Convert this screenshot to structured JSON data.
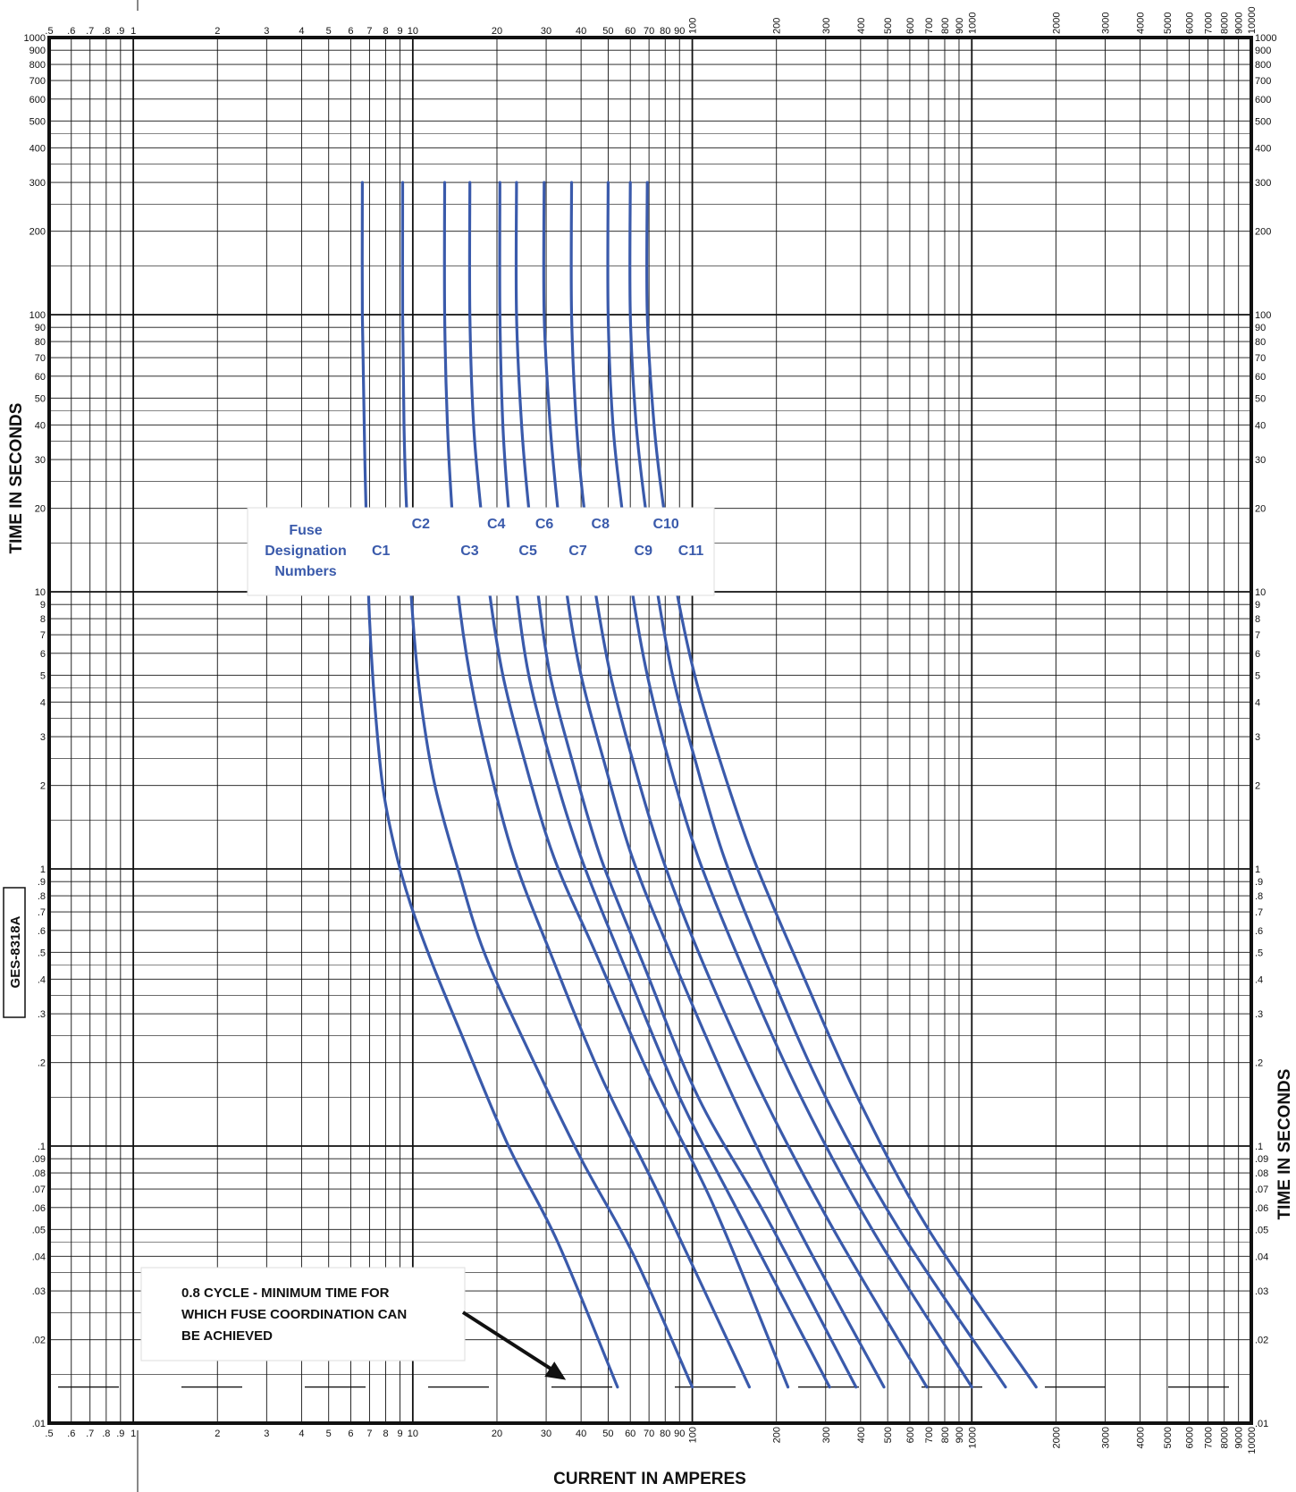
{
  "chart_data": {
    "type": "line",
    "title": "",
    "xlabel": "CURRENT IN AMPERES",
    "ylabel": "TIME IN SECONDS",
    "xscale": "log",
    "yscale": "log",
    "xlim": [
      0.5,
      10000
    ],
    "ylim": [
      0.01,
      1000
    ],
    "grid": true,
    "document_id": "GES-8318A",
    "x_tick_labels": [
      {
        "v": 0.5,
        "t": ".5"
      },
      {
        "v": 0.6,
        "t": ".6"
      },
      {
        "v": 0.7,
        "t": ".7"
      },
      {
        "v": 0.8,
        "t": ".8"
      },
      {
        "v": 0.9,
        "t": ".9"
      },
      {
        "v": 1,
        "t": "1"
      },
      {
        "v": 2,
        "t": "2"
      },
      {
        "v": 3,
        "t": "3"
      },
      {
        "v": 4,
        "t": "4"
      },
      {
        "v": 5,
        "t": "5"
      },
      {
        "v": 6,
        "t": "6"
      },
      {
        "v": 7,
        "t": "7"
      },
      {
        "v": 8,
        "t": "8"
      },
      {
        "v": 9,
        "t": "9"
      },
      {
        "v": 10,
        "t": "10"
      },
      {
        "v": 20,
        "t": "20"
      },
      {
        "v": 30,
        "t": "30"
      },
      {
        "v": 40,
        "t": "40"
      },
      {
        "v": 50,
        "t": "50"
      },
      {
        "v": 60,
        "t": "60"
      },
      {
        "v": 70,
        "t": "70"
      },
      {
        "v": 80,
        "t": "80"
      },
      {
        "v": 90,
        "t": "90"
      },
      {
        "v": 100,
        "t": "100"
      },
      {
        "v": 200,
        "t": "200"
      },
      {
        "v": 300,
        "t": "300"
      },
      {
        "v": 400,
        "t": "400"
      },
      {
        "v": 500,
        "t": "500"
      },
      {
        "v": 600,
        "t": "600"
      },
      {
        "v": 700,
        "t": "700"
      },
      {
        "v": 800,
        "t": "800"
      },
      {
        "v": 900,
        "t": "900"
      },
      {
        "v": 1000,
        "t": "1000"
      },
      {
        "v": 2000,
        "t": "2000"
      },
      {
        "v": 3000,
        "t": "3000"
      },
      {
        "v": 4000,
        "t": "4000"
      },
      {
        "v": 5000,
        "t": "5000"
      },
      {
        "v": 6000,
        "t": "6000"
      },
      {
        "v": 7000,
        "t": "7000"
      },
      {
        "v": 8000,
        "t": "8000"
      },
      {
        "v": 9000,
        "t": "9000"
      },
      {
        "v": 10000,
        "t": "10000"
      }
    ],
    "y_tick_labels": [
      {
        "v": 0.01,
        "t": ".01"
      },
      {
        "v": 0.02,
        "t": ".02"
      },
      {
        "v": 0.03,
        "t": ".03"
      },
      {
        "v": 0.04,
        "t": ".04"
      },
      {
        "v": 0.05,
        "t": ".05"
      },
      {
        "v": 0.06,
        "t": ".06"
      },
      {
        "v": 0.07,
        "t": ".07"
      },
      {
        "v": 0.08,
        "t": ".08"
      },
      {
        "v": 0.09,
        "t": ".09"
      },
      {
        "v": 0.1,
        "t": ".1"
      },
      {
        "v": 0.2,
        "t": ".2"
      },
      {
        "v": 0.3,
        "t": ".3"
      },
      {
        "v": 0.4,
        "t": ".4"
      },
      {
        "v": 0.5,
        "t": ".5"
      },
      {
        "v": 0.6,
        "t": ".6"
      },
      {
        "v": 0.7,
        "t": ".7"
      },
      {
        "v": 0.8,
        "t": ".8"
      },
      {
        "v": 0.9,
        "t": ".9"
      },
      {
        "v": 1,
        "t": "1"
      },
      {
        "v": 2,
        "t": "2"
      },
      {
        "v": 3,
        "t": "3"
      },
      {
        "v": 4,
        "t": "4"
      },
      {
        "v": 5,
        "t": "5"
      },
      {
        "v": 6,
        "t": "6"
      },
      {
        "v": 7,
        "t": "7"
      },
      {
        "v": 8,
        "t": "8"
      },
      {
        "v": 9,
        "t": "9"
      },
      {
        "v": 10,
        "t": "10"
      },
      {
        "v": 20,
        "t": "20"
      },
      {
        "v": 30,
        "t": "30"
      },
      {
        "v": 40,
        "t": "40"
      },
      {
        "v": 50,
        "t": "50"
      },
      {
        "v": 60,
        "t": "60"
      },
      {
        "v": 70,
        "t": "70"
      },
      {
        "v": 80,
        "t": "80"
      },
      {
        "v": 90,
        "t": "90"
      },
      {
        "v": 100,
        "t": "100"
      },
      {
        "v": 200,
        "t": "200"
      },
      {
        "v": 300,
        "t": "300"
      },
      {
        "v": 400,
        "t": "400"
      },
      {
        "v": 500,
        "t": "500"
      },
      {
        "v": 600,
        "t": "600"
      },
      {
        "v": 700,
        "t": "700"
      },
      {
        "v": 800,
        "t": "800"
      },
      {
        "v": 900,
        "t": "900"
      },
      {
        "v": 1000,
        "t": "1000"
      }
    ],
    "legend_title": [
      "Fuse",
      "Designation",
      "Numbers"
    ],
    "series_color": "#3a5aab",
    "series": [
      {
        "name": "C1",
        "points": [
          [
            6.6,
            300
          ],
          [
            6.6,
            100
          ],
          [
            6.7,
            40
          ],
          [
            6.8,
            20
          ],
          [
            7,
            8
          ],
          [
            7.3,
            4
          ],
          [
            7.8,
            2
          ],
          [
            8.6,
            1.2
          ],
          [
            9.8,
            0.75
          ],
          [
            11.8,
            0.45
          ],
          [
            15,
            0.25
          ],
          [
            22,
            0.1
          ],
          [
            33,
            0.045
          ],
          [
            54,
            0.0135
          ]
        ]
      },
      {
        "name": "C2",
        "points": [
          [
            9.2,
            300
          ],
          [
            9.2,
            100
          ],
          [
            9.3,
            40
          ],
          [
            9.5,
            20
          ],
          [
            10,
            8
          ],
          [
            10.7,
            4
          ],
          [
            12,
            2
          ],
          [
            14.5,
            1
          ],
          [
            18,
            0.5
          ],
          [
            26,
            0.22
          ],
          [
            40,
            0.09
          ],
          [
            62,
            0.04
          ],
          [
            100,
            0.0135
          ]
        ]
      },
      {
        "name": "C3",
        "points": [
          [
            13,
            300
          ],
          [
            13,
            100
          ],
          [
            13.3,
            40
          ],
          [
            13.8,
            20
          ],
          [
            14.5,
            10
          ],
          [
            16,
            5
          ],
          [
            18.5,
            2.5
          ],
          [
            23,
            1.1
          ],
          [
            31,
            0.5
          ],
          [
            47,
            0.18
          ],
          [
            80,
            0.06
          ],
          [
            160,
            0.0135
          ]
        ]
      },
      {
        "name": "C4",
        "points": [
          [
            16,
            300
          ],
          [
            16,
            100
          ],
          [
            16.5,
            40
          ],
          [
            17.5,
            20
          ],
          [
            18.8,
            10
          ],
          [
            21,
            5
          ],
          [
            25,
            2.5
          ],
          [
            32,
            1.1
          ],
          [
            45,
            0.5
          ],
          [
            72,
            0.17
          ],
          [
            120,
            0.06
          ],
          [
            220,
            0.0135
          ]
        ]
      },
      {
        "name": "C5",
        "points": [
          [
            20.5,
            300
          ],
          [
            20.5,
            100
          ],
          [
            21,
            40
          ],
          [
            22,
            20
          ],
          [
            23.5,
            10
          ],
          [
            26,
            5
          ],
          [
            31,
            2.5
          ],
          [
            40,
            1.1
          ],
          [
            57,
            0.45
          ],
          [
            90,
            0.15
          ],
          [
            150,
            0.055
          ],
          [
            310,
            0.0135
          ]
        ]
      },
      {
        "name": "C6",
        "points": [
          [
            23.5,
            300
          ],
          [
            23.5,
            100
          ],
          [
            24.5,
            40
          ],
          [
            26,
            20
          ],
          [
            28,
            10
          ],
          [
            31,
            5
          ],
          [
            37,
            2.5
          ],
          [
            47,
            1.1
          ],
          [
            67,
            0.45
          ],
          [
            105,
            0.15
          ],
          [
            185,
            0.055
          ],
          [
            385,
            0.0135
          ]
        ]
      },
      {
        "name": "C7",
        "points": [
          [
            29.5,
            300
          ],
          [
            29.5,
            100
          ],
          [
            31,
            40
          ],
          [
            33,
            20
          ],
          [
            35.5,
            10
          ],
          [
            40,
            5
          ],
          [
            48,
            2.5
          ],
          [
            61,
            1.1
          ],
          [
            87,
            0.45
          ],
          [
            140,
            0.15
          ],
          [
            240,
            0.05
          ],
          [
            485,
            0.0135
          ]
        ]
      },
      {
        "name": "C8",
        "points": [
          [
            37,
            300
          ],
          [
            37,
            100
          ],
          [
            38.5,
            40
          ],
          [
            41,
            20
          ],
          [
            45,
            10
          ],
          [
            51,
            5
          ],
          [
            61,
            2.5
          ],
          [
            78,
            1.1
          ],
          [
            110,
            0.45
          ],
          [
            180,
            0.15
          ],
          [
            320,
            0.05
          ],
          [
            690,
            0.0135
          ]
        ]
      },
      {
        "name": "C9",
        "points": [
          [
            50,
            300
          ],
          [
            50,
            100
          ],
          [
            52,
            40
          ],
          [
            56,
            20
          ],
          [
            61,
            10
          ],
          [
            69,
            5
          ],
          [
            82,
            2.5
          ],
          [
            105,
            1.1
          ],
          [
            150,
            0.45
          ],
          [
            245,
            0.15
          ],
          [
            440,
            0.05
          ],
          [
            1000,
            0.0135
          ]
        ]
      },
      {
        "name": "C10",
        "points": [
          [
            60,
            300
          ],
          [
            60,
            100
          ],
          [
            63,
            40
          ],
          [
            68,
            20
          ],
          [
            75,
            10
          ],
          [
            85,
            5
          ],
          [
            102,
            2.5
          ],
          [
            130,
            1.1
          ],
          [
            185,
            0.45
          ],
          [
            300,
            0.15
          ],
          [
            550,
            0.05
          ],
          [
            1320,
            0.0135
          ]
        ]
      },
      {
        "name": "C11",
        "points": [
          [
            69,
            300
          ],
          [
            69,
            100
          ],
          [
            73,
            40
          ],
          [
            79,
            20
          ],
          [
            88,
            10
          ],
          [
            102,
            5
          ],
          [
            125,
            2.5
          ],
          [
            165,
            1.1
          ],
          [
            240,
            0.45
          ],
          [
            390,
            0.15
          ],
          [
            700,
            0.05
          ],
          [
            1700,
            0.0135
          ]
        ]
      }
    ],
    "annotation": {
      "lines": [
        "0.8 CYCLE - MINIMUM TIME FOR",
        "WHICH FUSE COORDINATION CAN",
        "BE ACHIEVED"
      ],
      "target": [
        38,
        0.0135
      ]
    },
    "reference_line": {
      "value": 0.0135
    }
  }
}
